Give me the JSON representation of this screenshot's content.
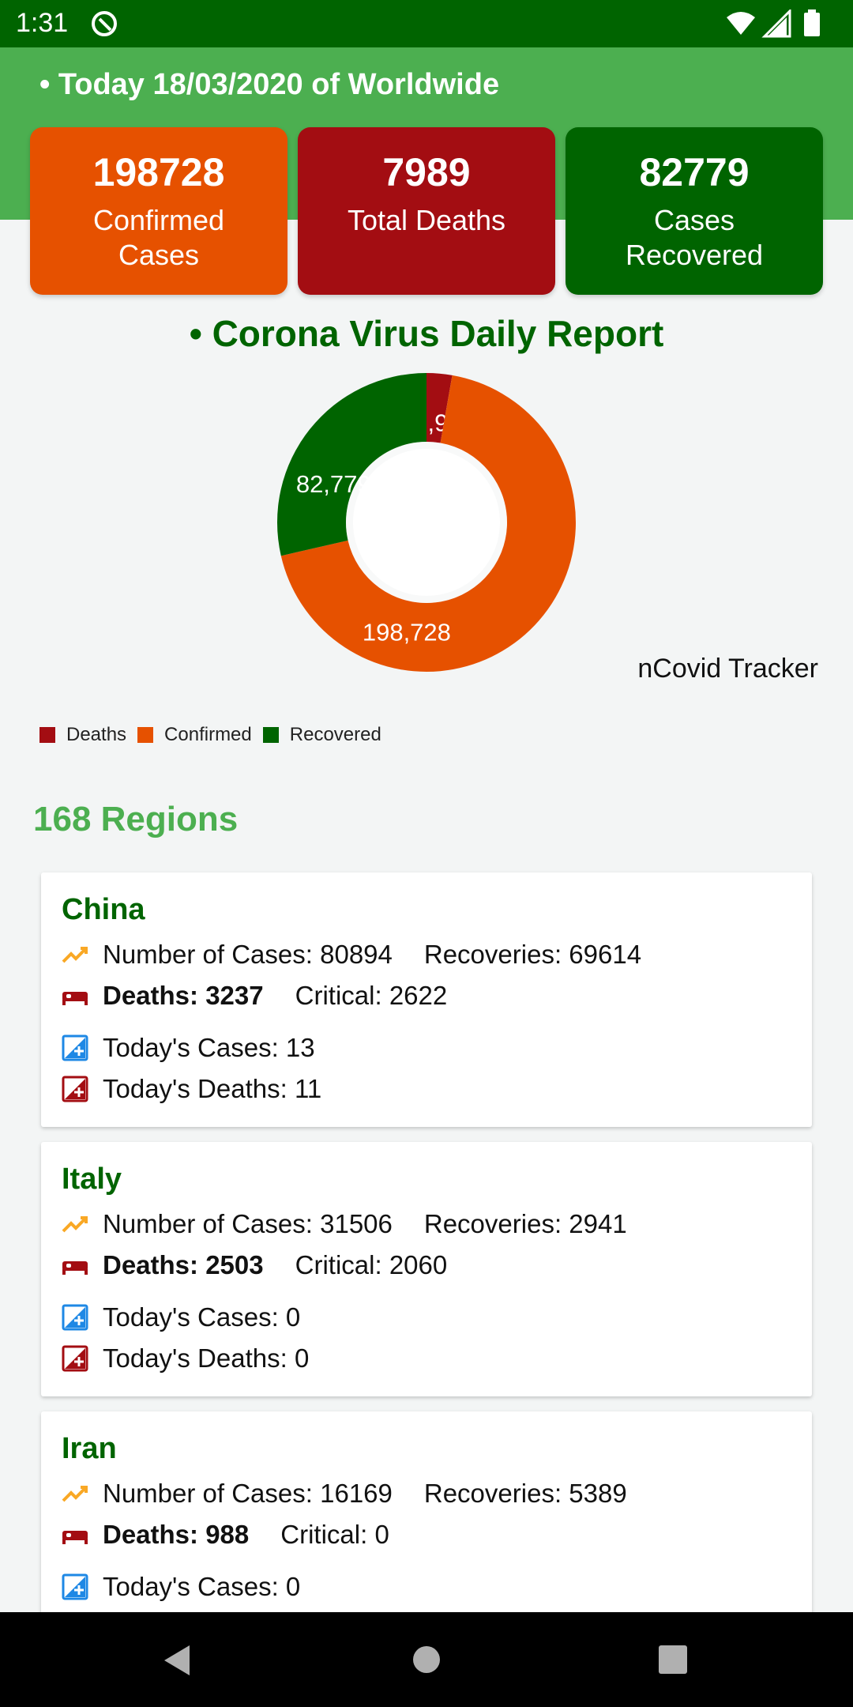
{
  "status_bar": {
    "time": "1:31"
  },
  "header": {
    "title": "• Today 18/03/2020 of Worldwide"
  },
  "stats": {
    "confirmed": {
      "value": "198728",
      "label": "Confirmed Cases"
    },
    "deaths": {
      "value": "7989",
      "label": "Total Deaths"
    },
    "recovered": {
      "value": "82779",
      "label": "Cases Recovered"
    }
  },
  "chart_section": {
    "title": "• Corona Virus Daily Report",
    "description": "nCovid Tracker"
  },
  "chart_data": {
    "type": "pie",
    "categories": [
      "Deaths",
      "Confirmed",
      "Recovered"
    ],
    "values": [
      7989,
      198728,
      82779
    ],
    "data_labels": [
      "7,989",
      "198,728",
      "82,779"
    ],
    "colors": [
      "#a30d12",
      "#e65100",
      "#006400"
    ],
    "legend_position": "bottom-left"
  },
  "regions": {
    "count_label": "168 Regions",
    "items": [
      {
        "name": "China",
        "cases_label": "Number of Cases:",
        "cases": "80894",
        "recoveries_label": "Recoveries:",
        "recoveries": "69614",
        "deaths_label": "Deaths:",
        "deaths": "3237",
        "critical_label": "Critical:",
        "critical": "2622",
        "today_cases_label": "Today's Cases:",
        "today_cases": "13",
        "today_deaths_label": "Today's Deaths:",
        "today_deaths": "11"
      },
      {
        "name": "Italy",
        "cases_label": "Number of Cases:",
        "cases": "31506",
        "recoveries_label": "Recoveries:",
        "recoveries": "2941",
        "deaths_label": "Deaths:",
        "deaths": "2503",
        "critical_label": "Critical:",
        "critical": "2060",
        "today_cases_label": "Today's Cases:",
        "today_cases": "0",
        "today_deaths_label": "Today's Deaths:",
        "today_deaths": "0"
      },
      {
        "name": "Iran",
        "cases_label": "Number of Cases:",
        "cases": "16169",
        "recoveries_label": "Recoveries:",
        "recoveries": "5389",
        "deaths_label": "Deaths:",
        "deaths": "988",
        "critical_label": "Critical:",
        "critical": "0",
        "today_cases_label": "Today's Cases:",
        "today_cases": "0"
      }
    ]
  },
  "colors": {
    "primary_dark": "#006400",
    "primary": "#4caf50",
    "confirmed": "#e65100",
    "deaths": "#a30d12",
    "trend_icon": "#f9a825",
    "today_cases_icon": "#1e88e5"
  },
  "icons": {
    "status_app": "vpn-shield-icon",
    "status_right": [
      "wifi-icon",
      "signal-icon",
      "battery-icon"
    ],
    "cases": "trending-up-icon",
    "deaths": "hospital-bed-icon",
    "today_cases": "add-box-icon",
    "today_deaths": "add-box-icon",
    "nav": [
      "back-icon",
      "home-icon",
      "recents-icon"
    ]
  }
}
